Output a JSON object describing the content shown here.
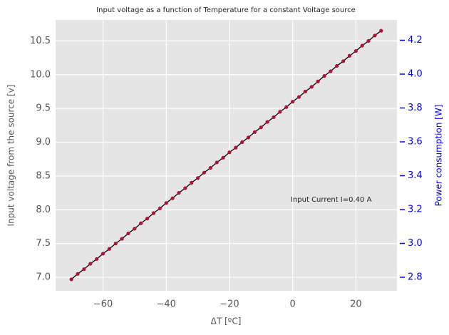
{
  "chart_data": {
    "type": "line",
    "title": "Input voltage as a function of Temperature for a constant Voltage source",
    "x_label": "ΔT [ºC]",
    "y_label": "Input voltage from the source [v]",
    "y2_label": "Power consumption [W]",
    "annotation": "Input Current I=0.40 A",
    "x": [
      -70,
      -68,
      -66,
      -64,
      -62,
      -60,
      -58,
      -56,
      -54,
      -52,
      -50,
      -48,
      -46,
      -44,
      -42,
      -40,
      -38,
      -36,
      -34,
      -32,
      -30,
      -28,
      -26,
      -24,
      -22,
      -20,
      -18,
      -16,
      -14,
      -12,
      -10,
      -8,
      -6,
      -4,
      -2,
      0,
      2,
      4,
      6,
      8,
      10,
      12,
      14,
      16,
      18,
      20,
      22,
      24,
      26,
      28
    ],
    "series": [
      {
        "name": "Input voltage",
        "color": "#b0103a",
        "line_color": "#000000",
        "values": [
          6.97,
          7.05,
          7.12,
          7.2,
          7.27,
          7.35,
          7.42,
          7.5,
          7.57,
          7.65,
          7.72,
          7.8,
          7.87,
          7.95,
          8.02,
          8.1,
          8.17,
          8.25,
          8.32,
          8.4,
          8.47,
          8.55,
          8.62,
          8.7,
          8.77,
          8.85,
          8.92,
          9.0,
          9.07,
          9.15,
          9.22,
          9.3,
          9.37,
          9.45,
          9.52,
          9.6,
          9.67,
          9.75,
          9.82,
          9.9,
          9.98,
          10.05,
          10.13,
          10.2,
          10.28,
          10.35,
          10.43,
          10.5,
          10.58,
          10.65
        ]
      }
    ],
    "xlim": [
      -75,
      33
    ],
    "xticks": [
      {
        "value": -60,
        "label": "−60"
      },
      {
        "value": -40,
        "label": "−40"
      },
      {
        "value": -20,
        "label": "−20"
      },
      0,
      20
    ],
    "ylim": [
      6.8,
      10.81
    ],
    "yticks": [
      {
        "value": 7,
        "label": "7.0"
      },
      7.5,
      {
        "value": 8,
        "label": "8.0"
      },
      8.5,
      {
        "value": 9,
        "label": "9.0"
      },
      9.5,
      {
        "value": 10,
        "label": "10.0"
      },
      10.5
    ],
    "y2lim": [
      2.72,
      4.32
    ],
    "y2ticks": [
      2.8,
      {
        "value": 3,
        "label": "3.0"
      },
      3.2,
      3.4,
      3.6,
      3.8,
      {
        "value": 4,
        "label": "4.0"
      },
      4.2
    ],
    "y2_color": "#0000ff",
    "grid": true
  }
}
